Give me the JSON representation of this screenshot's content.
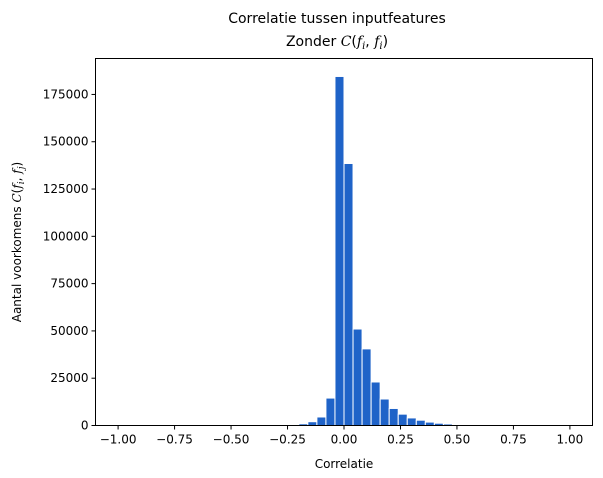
{
  "chart_data": {
    "type": "bar",
    "title": "Correlatie tussen inputfeatures",
    "subtitle": {
      "prefix": "Zonder ",
      "C": "C",
      "open": "(",
      "f": "f",
      "sub": "i",
      "comma": ", ",
      "close": ")"
    },
    "xlabel": "Correlatie",
    "ylabel": {
      "prefix": "Aantal voorkomens ",
      "C": "C",
      "open": "(",
      "f": "f",
      "sub1": "i",
      "comma": ", ",
      "sub2": "j",
      "close": ")"
    },
    "xlim": [
      -1.1,
      1.1
    ],
    "ylim": [
      0,
      194000
    ],
    "xticks": [
      -1.0,
      -0.75,
      -0.5,
      -0.25,
      0.0,
      0.25,
      0.5,
      0.75,
      1.0
    ],
    "xtick_labels": [
      "−1.00",
      "−0.75",
      "−0.50",
      "−0.25",
      "0.00",
      "0.25",
      "0.50",
      "0.75",
      "1.00"
    ],
    "yticks": [
      0,
      25000,
      50000,
      75000,
      100000,
      125000,
      150000,
      175000
    ],
    "ytick_labels": [
      "0",
      "25000",
      "50000",
      "75000",
      "100000",
      "125000",
      "150000",
      "175000"
    ],
    "bin_width": 0.04,
    "bin_edges": [
      -1.0,
      -0.96,
      -0.92,
      -0.88,
      -0.84,
      -0.8,
      -0.76,
      -0.72,
      -0.68,
      -0.64,
      -0.6,
      -0.56,
      -0.52,
      -0.48,
      -0.44,
      -0.4,
      -0.36,
      -0.32,
      -0.28,
      -0.24,
      -0.2,
      -0.16,
      -0.12,
      -0.08,
      -0.04,
      0.0,
      0.04,
      0.08,
      0.12,
      0.16,
      0.2,
      0.24,
      0.28,
      0.32,
      0.36,
      0.4,
      0.44,
      0.48,
      0.52,
      0.56,
      0.6,
      0.64,
      0.68,
      0.72,
      0.76,
      0.8,
      0.84,
      0.88,
      0.92,
      0.96
    ],
    "values": [
      0,
      0,
      0,
      0,
      0,
      0,
      0,
      0,
      0,
      0,
      0,
      0,
      0,
      0,
      0,
      0,
      0,
      0,
      80,
      250,
      900,
      2000,
      4500,
      14500,
      184500,
      138500,
      51000,
      40500,
      23000,
      14000,
      9000,
      6000,
      4000,
      2800,
      1800,
      1200,
      800,
      500,
      250,
      120,
      60,
      30,
      0,
      0,
      0,
      0,
      0,
      0,
      0,
      0
    ],
    "bar_color": "#1f63c8",
    "grid": false,
    "legend": "none"
  }
}
